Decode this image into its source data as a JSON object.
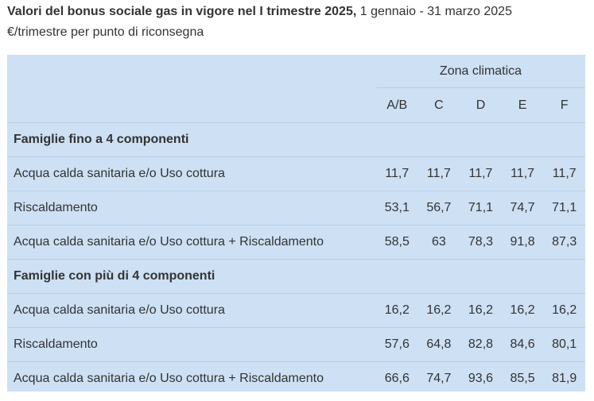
{
  "caption": {
    "title_bold": "Valori del bonus sociale gas in vigore nel I trimestre 2025,",
    "title_rest": " 1 gennaio - 31 marzo 2025",
    "unit": "€/trimestre per punto di riconsegna"
  },
  "table": {
    "zone_header": "Zona climatica",
    "columns": [
      "A/B",
      "C",
      "D",
      "E",
      "F"
    ],
    "groups": [
      {
        "title": "Famiglie fino a 4 componenti",
        "rows": [
          {
            "label": "Acqua calda sanitaria e/o Uso cottura",
            "values": [
              "11,7",
              "11,7",
              "11,7",
              "11,7",
              "11,7"
            ]
          },
          {
            "label": "Riscaldamento",
            "values": [
              "53,1",
              "56,7",
              "71,1",
              "74,7",
              "71,1"
            ]
          },
          {
            "label": "Acqua calda sanitaria e/o Uso cottura + Riscaldamento",
            "values": [
              "58,5",
              "63",
              "78,3",
              "91,8",
              "87,3"
            ]
          }
        ]
      },
      {
        "title": "Famiglie con più di  4 componenti",
        "rows": [
          {
            "label": "Acqua calda sanitaria e/o Uso cottura",
            "values": [
              "16,2",
              "16,2",
              "16,2",
              "16,2",
              "16,2"
            ]
          },
          {
            "label": "Riscaldamento",
            "values": [
              "57,6",
              "64,8",
              "82,8",
              "84,6",
              "80,1"
            ]
          },
          {
            "label": "Acqua calda sanitaria e/o Uso cottura + Riscaldamento",
            "values": [
              "66,6",
              "74,7",
              "93,6",
              "85,5",
              "81,9"
            ]
          }
        ]
      }
    ]
  }
}
